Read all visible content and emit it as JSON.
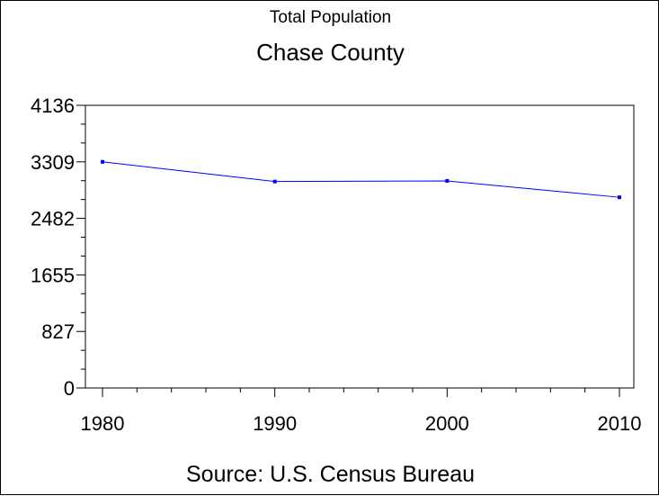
{
  "chart_data": {
    "type": "line",
    "title": "Chase County",
    "subtitle": "Total Population",
    "footnote": "Source: U.S. Census Bureau",
    "xlabel": "",
    "ylabel": "",
    "x": [
      1980,
      1990,
      2000,
      2010
    ],
    "x_ticks": [
      "1980",
      "1990",
      "2000",
      "2010"
    ],
    "y_ticks": [
      "0",
      "827",
      "1655",
      "2482",
      "3309",
      "4136"
    ],
    "ylim": [
      0,
      4136
    ],
    "xlim": [
      1980,
      2010
    ],
    "grid": false,
    "series": [
      {
        "values": [
          3309,
          3021,
          3030,
          2790
        ],
        "color": "#0000ff"
      }
    ]
  }
}
